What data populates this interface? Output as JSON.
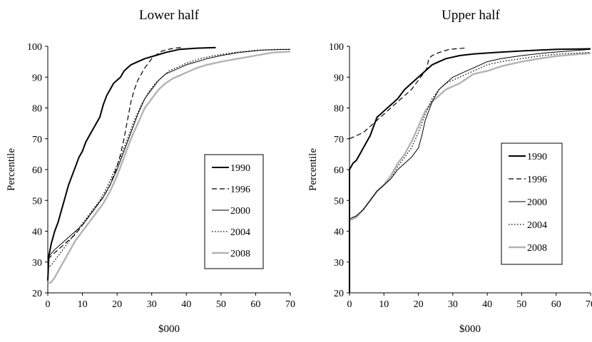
{
  "chart_data": [
    {
      "type": "line",
      "title": "Lower half",
      "xlabel": "$000",
      "ylabel": "Percentile",
      "xlim": [
        0,
        70
      ],
      "ylim": [
        20,
        100
      ],
      "xticks": [
        "0",
        "10",
        "20",
        "30",
        "40",
        "50",
        "60",
        "70"
      ],
      "yticks": [
        "20",
        "30",
        "40",
        "50",
        "60",
        "70",
        "80",
        "90",
        "100"
      ],
      "grid": false,
      "legend_position": "right",
      "series": [
        {
          "name": "1990",
          "style": "solid",
          "color": "#000000",
          "width": 2,
          "points": [
            [
              0,
              24
            ],
            [
              0.3,
              32
            ],
            [
              1,
              36
            ],
            [
              2,
              40
            ],
            [
              3,
              43
            ],
            [
              4,
              47
            ],
            [
              5,
              51
            ],
            [
              6,
              55
            ],
            [
              7,
              58
            ],
            [
              8,
              61
            ],
            [
              9,
              64
            ],
            [
              10,
              66
            ],
            [
              11,
              69
            ],
            [
              12,
              71
            ],
            [
              13,
              73
            ],
            [
              14,
              75
            ],
            [
              15,
              77
            ],
            [
              16,
              81
            ],
            [
              17,
              84
            ],
            [
              18,
              86
            ],
            [
              19,
              88
            ],
            [
              20,
              89
            ],
            [
              21,
              90
            ],
            [
              22,
              92
            ],
            [
              23,
              93
            ],
            [
              24,
              94
            ],
            [
              26,
              95
            ],
            [
              28,
              96
            ],
            [
              31,
              97
            ],
            [
              34,
              98
            ],
            [
              38,
              99
            ],
            [
              43,
              99.4
            ],
            [
              48.5,
              99.6
            ]
          ]
        },
        {
          "name": "1996",
          "style": "dashed",
          "color": "#000000",
          "width": 1.2,
          "points": [
            [
              0,
              31
            ],
            [
              2,
              33
            ],
            [
              4,
              35
            ],
            [
              6,
              37
            ],
            [
              8,
              39
            ],
            [
              10,
              42
            ],
            [
              12,
              45
            ],
            [
              14,
              48
            ],
            [
              16,
              51
            ],
            [
              18,
              55
            ],
            [
              20,
              61
            ],
            [
              21,
              65
            ],
            [
              22,
              70
            ],
            [
              23,
              76
            ],
            [
              24,
              82
            ],
            [
              25,
              86
            ],
            [
              26,
              89
            ],
            [
              27,
              91
            ],
            [
              28,
              93
            ],
            [
              29,
              94.5
            ],
            [
              30,
              96
            ],
            [
              31,
              97
            ],
            [
              33,
              98.5
            ],
            [
              36,
              99.3
            ],
            [
              39,
              99.7
            ]
          ]
        },
        {
          "name": "2000",
          "style": "solid",
          "color": "#000000",
          "width": 1,
          "points": [
            [
              0,
              31.5
            ],
            [
              2,
              34
            ],
            [
              4,
              36
            ],
            [
              6,
              38
            ],
            [
              8,
              40
            ],
            [
              10,
              42
            ],
            [
              12,
              45
            ],
            [
              14,
              48
            ],
            [
              16,
              51
            ],
            [
              18,
              55
            ],
            [
              20,
              60
            ],
            [
              22,
              66
            ],
            [
              24,
              72
            ],
            [
              26,
              78
            ],
            [
              28,
              83
            ],
            [
              30,
              86
            ],
            [
              32,
              89
            ],
            [
              34,
              91
            ],
            [
              36,
              92
            ],
            [
              38,
              93
            ],
            [
              40,
              94
            ],
            [
              43,
              95
            ],
            [
              46,
              96
            ],
            [
              50,
              97
            ],
            [
              55,
              98
            ],
            [
              62,
              98.8
            ],
            [
              70,
              99
            ]
          ]
        },
        {
          "name": "2004",
          "style": "dotted",
          "color": "#000000",
          "width": 1.3,
          "points": [
            [
              0,
              28
            ],
            [
              1,
              29
            ],
            [
              3,
              32
            ],
            [
              5,
              35
            ],
            [
              7,
              38
            ],
            [
              9,
              41
            ],
            [
              11,
              44
            ],
            [
              13,
              47
            ],
            [
              15,
              50
            ],
            [
              17,
              54
            ],
            [
              19,
              59
            ],
            [
              21,
              64
            ],
            [
              23,
              70
            ],
            [
              25,
              76
            ],
            [
              27,
              81
            ],
            [
              29,
              85
            ],
            [
              31,
              88
            ],
            [
              33,
              90
            ],
            [
              35,
              92
            ],
            [
              37,
              93
            ],
            [
              40,
              94.5
            ],
            [
              44,
              96
            ],
            [
              48,
              97
            ],
            [
              54,
              98
            ],
            [
              60,
              98.7
            ],
            [
              66,
              99
            ],
            [
              70,
              99
            ]
          ]
        },
        {
          "name": "2008",
          "style": "solid",
          "color": "#b3b3b3",
          "width": 2.4,
          "points": [
            [
              0,
              23
            ],
            [
              1,
              23.5
            ],
            [
              2,
              25
            ],
            [
              3,
              27
            ],
            [
              4,
              29
            ],
            [
              5,
              31
            ],
            [
              6,
              33
            ],
            [
              7,
              35
            ],
            [
              8,
              37
            ],
            [
              10,
              40
            ],
            [
              12,
              43
            ],
            [
              14,
              46
            ],
            [
              16,
              49
            ],
            [
              18,
              53
            ],
            [
              20,
              58
            ],
            [
              22,
              64
            ],
            [
              24,
              70
            ],
            [
              26,
              75
            ],
            [
              28,
              80
            ],
            [
              30,
              83
            ],
            [
              32,
              86
            ],
            [
              34,
              88
            ],
            [
              36,
              89.5
            ],
            [
              38,
              90.5
            ],
            [
              40,
              91.5
            ],
            [
              43,
              93
            ],
            [
              46,
              94
            ],
            [
              50,
              95
            ],
            [
              55,
              96
            ],
            [
              60,
              97
            ],
            [
              65,
              98
            ],
            [
              70,
              98.3
            ]
          ]
        }
      ]
    },
    {
      "type": "line",
      "title": "Upper half",
      "xlabel": "$000",
      "ylabel": "Percentile",
      "xlim": [
        0,
        70
      ],
      "ylim": [
        20,
        100
      ],
      "xticks": [
        "0",
        "10",
        "20",
        "30",
        "40",
        "50",
        "60",
        "70"
      ],
      "yticks": [
        "20",
        "30",
        "40",
        "50",
        "60",
        "70",
        "80",
        "90",
        "100"
      ],
      "grid": false,
      "legend_position": "right",
      "series": [
        {
          "name": "1990",
          "style": "solid",
          "color": "#000000",
          "width": 2,
          "points": [
            [
              0,
              20
            ],
            [
              0,
              60
            ],
            [
              1,
              62
            ],
            [
              2,
              63
            ],
            [
              3,
              65
            ],
            [
              4,
              67
            ],
            [
              5,
              69
            ],
            [
              6,
              71
            ],
            [
              7,
              74
            ],
            [
              8,
              77
            ],
            [
              9,
              78
            ],
            [
              10,
              79
            ],
            [
              11,
              80
            ],
            [
              12,
              81
            ],
            [
              14,
              83
            ],
            [
              16,
              86
            ],
            [
              18,
              88
            ],
            [
              20,
              90
            ],
            [
              22,
              92
            ],
            [
              24,
              94
            ],
            [
              26,
              95
            ],
            [
              28,
              96
            ],
            [
              32,
              97
            ],
            [
              36,
              97.5
            ],
            [
              42,
              98
            ],
            [
              50,
              98.5
            ],
            [
              60,
              99
            ],
            [
              70,
              99.2
            ]
          ]
        },
        {
          "name": "1996",
          "style": "dashed",
          "color": "#000000",
          "width": 1.2,
          "points": [
            [
              0,
              70
            ],
            [
              2,
              71
            ],
            [
              4,
              72
            ],
            [
              6,
              74
            ],
            [
              8,
              76
            ],
            [
              10,
              78
            ],
            [
              12,
              80
            ],
            [
              14,
              82
            ],
            [
              16,
              84
            ],
            [
              18,
              86
            ],
            [
              20,
              89
            ],
            [
              22,
              92
            ],
            [
              22.5,
              93
            ],
            [
              23,
              96
            ],
            [
              24,
              97
            ],
            [
              26,
              98
            ],
            [
              29,
              99
            ],
            [
              34,
              99.5
            ]
          ]
        },
        {
          "name": "2000",
          "style": "solid",
          "color": "#000000",
          "width": 1,
          "points": [
            [
              0,
              44
            ],
            [
              2,
              45
            ],
            [
              4,
              47
            ],
            [
              6,
              50
            ],
            [
              8,
              53
            ],
            [
              10,
              55
            ],
            [
              12,
              57
            ],
            [
              14,
              60
            ],
            [
              16,
              62
            ],
            [
              18,
              64
            ],
            [
              20,
              67
            ],
            [
              21,
              71
            ],
            [
              22,
              76
            ],
            [
              24,
              82
            ],
            [
              26,
              86
            ],
            [
              28,
              88
            ],
            [
              30,
              90
            ],
            [
              32,
              91
            ],
            [
              34,
              92
            ],
            [
              36,
              93
            ],
            [
              40,
              95
            ],
            [
              44,
              96
            ],
            [
              50,
              97
            ],
            [
              58,
              98
            ],
            [
              70,
              99
            ]
          ]
        },
        {
          "name": "2004",
          "style": "dotted",
          "color": "#000000",
          "width": 1.3,
          "points": [
            [
              0,
              44
            ],
            [
              2,
              45
            ],
            [
              4,
              47
            ],
            [
              6,
              50
            ],
            [
              8,
              53
            ],
            [
              10,
              55
            ],
            [
              12,
              57
            ],
            [
              14,
              61
            ],
            [
              16,
              64
            ],
            [
              18,
              67
            ],
            [
              20,
              72
            ],
            [
              22,
              78
            ],
            [
              24,
              83
            ],
            [
              26,
              86
            ],
            [
              28,
              88
            ],
            [
              30,
              89
            ],
            [
              32,
              90
            ],
            [
              34,
              91
            ],
            [
              36,
              92
            ],
            [
              40,
              94
            ],
            [
              44,
              95
            ],
            [
              50,
              96
            ],
            [
              56,
              97
            ],
            [
              62,
              97.6
            ],
            [
              70,
              98
            ]
          ]
        },
        {
          "name": "2008",
          "style": "solid",
          "color": "#b3b3b3",
          "width": 2.4,
          "points": [
            [
              0,
              20
            ],
            [
              0,
              43.5
            ],
            [
              2,
              44.5
            ],
            [
              4,
              47
            ],
            [
              6,
              50
            ],
            [
              8,
              53
            ],
            [
              10,
              55
            ],
            [
              12,
              58
            ],
            [
              14,
              62
            ],
            [
              16,
              65
            ],
            [
              18,
              69
            ],
            [
              20,
              74
            ],
            [
              22,
              79
            ],
            [
              24,
              82
            ],
            [
              26,
              84
            ],
            [
              28,
              86
            ],
            [
              30,
              87
            ],
            [
              32,
              88
            ],
            [
              34,
              89.5
            ],
            [
              36,
              91
            ],
            [
              40,
              92
            ],
            [
              44,
              93.5
            ],
            [
              50,
              95
            ],
            [
              55,
              96
            ],
            [
              60,
              96.8
            ],
            [
              70,
              97.8
            ]
          ]
        }
      ]
    }
  ]
}
